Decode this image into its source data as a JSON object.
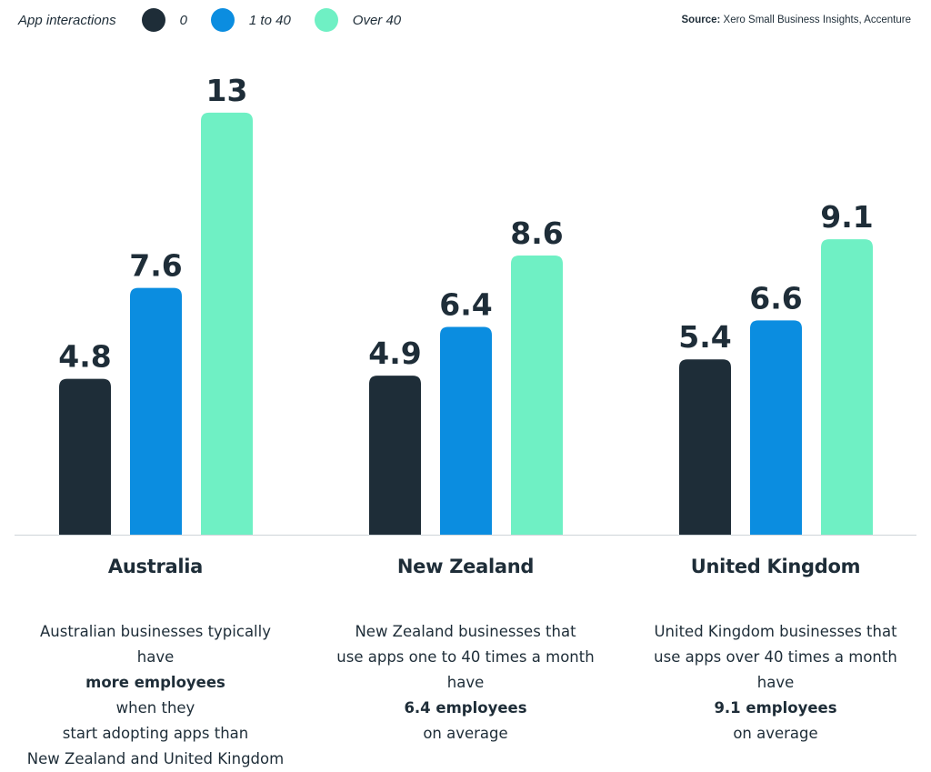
{
  "legend": {
    "title": "App interactions",
    "items": [
      {
        "label": "0",
        "color": "#1e2d38"
      },
      {
        "label": "1 to 40",
        "color": "#0b8de0"
      },
      {
        "label": "Over 40",
        "color": "#6ff0c4"
      }
    ]
  },
  "source": {
    "prefix": "Source:",
    "text": "Xero Small Business Insights, Accenture"
  },
  "chart_data": {
    "type": "bar",
    "categories": [
      "Australia",
      "New Zealand",
      "United Kingdom"
    ],
    "series": [
      {
        "name": "0",
        "color": "#1e2d38",
        "values": [
          4.8,
          4.9,
          5.4
        ]
      },
      {
        "name": "1 to 40",
        "color": "#0b8de0",
        "values": [
          7.6,
          6.4,
          6.6
        ]
      },
      {
        "name": "Over 40",
        "color": "#6ff0c4",
        "values": [
          13,
          8.6,
          9.1
        ]
      }
    ],
    "value_labels": [
      [
        "4.8",
        "7.6",
        "13"
      ],
      [
        "4.9",
        "6.4",
        "8.6"
      ],
      [
        "5.4",
        "6.6",
        "9.1"
      ]
    ],
    "legend_title": "App interactions",
    "legend_position": "top-left",
    "grid": false
  },
  "captions": [
    {
      "lines": [
        [
          {
            "t": "Australian businesses typically"
          }
        ],
        [
          {
            "t": "have "
          },
          {
            "t": "more employees",
            "b": true
          },
          {
            "t": " when they"
          }
        ],
        [
          {
            "t": "start adopting apps than"
          }
        ],
        [
          {
            "t": "New Zealand and United Kingdom"
          }
        ]
      ]
    },
    {
      "lines": [
        [
          {
            "t": "New Zealand businesses that"
          }
        ],
        [
          {
            "t": "use apps one to 40 times a month"
          }
        ],
        [
          {
            "t": "have "
          },
          {
            "t": "6.4 employees",
            "b": true
          },
          {
            "t": " on average"
          }
        ]
      ]
    },
    {
      "lines": [
        [
          {
            "t": "United Kingdom businesses that"
          }
        ],
        [
          {
            "t": "use apps over 40 times a month"
          }
        ],
        [
          {
            "t": "have "
          },
          {
            "t": "9.1 employees",
            "b": true
          },
          {
            "t": " on average"
          }
        ]
      ]
    }
  ]
}
